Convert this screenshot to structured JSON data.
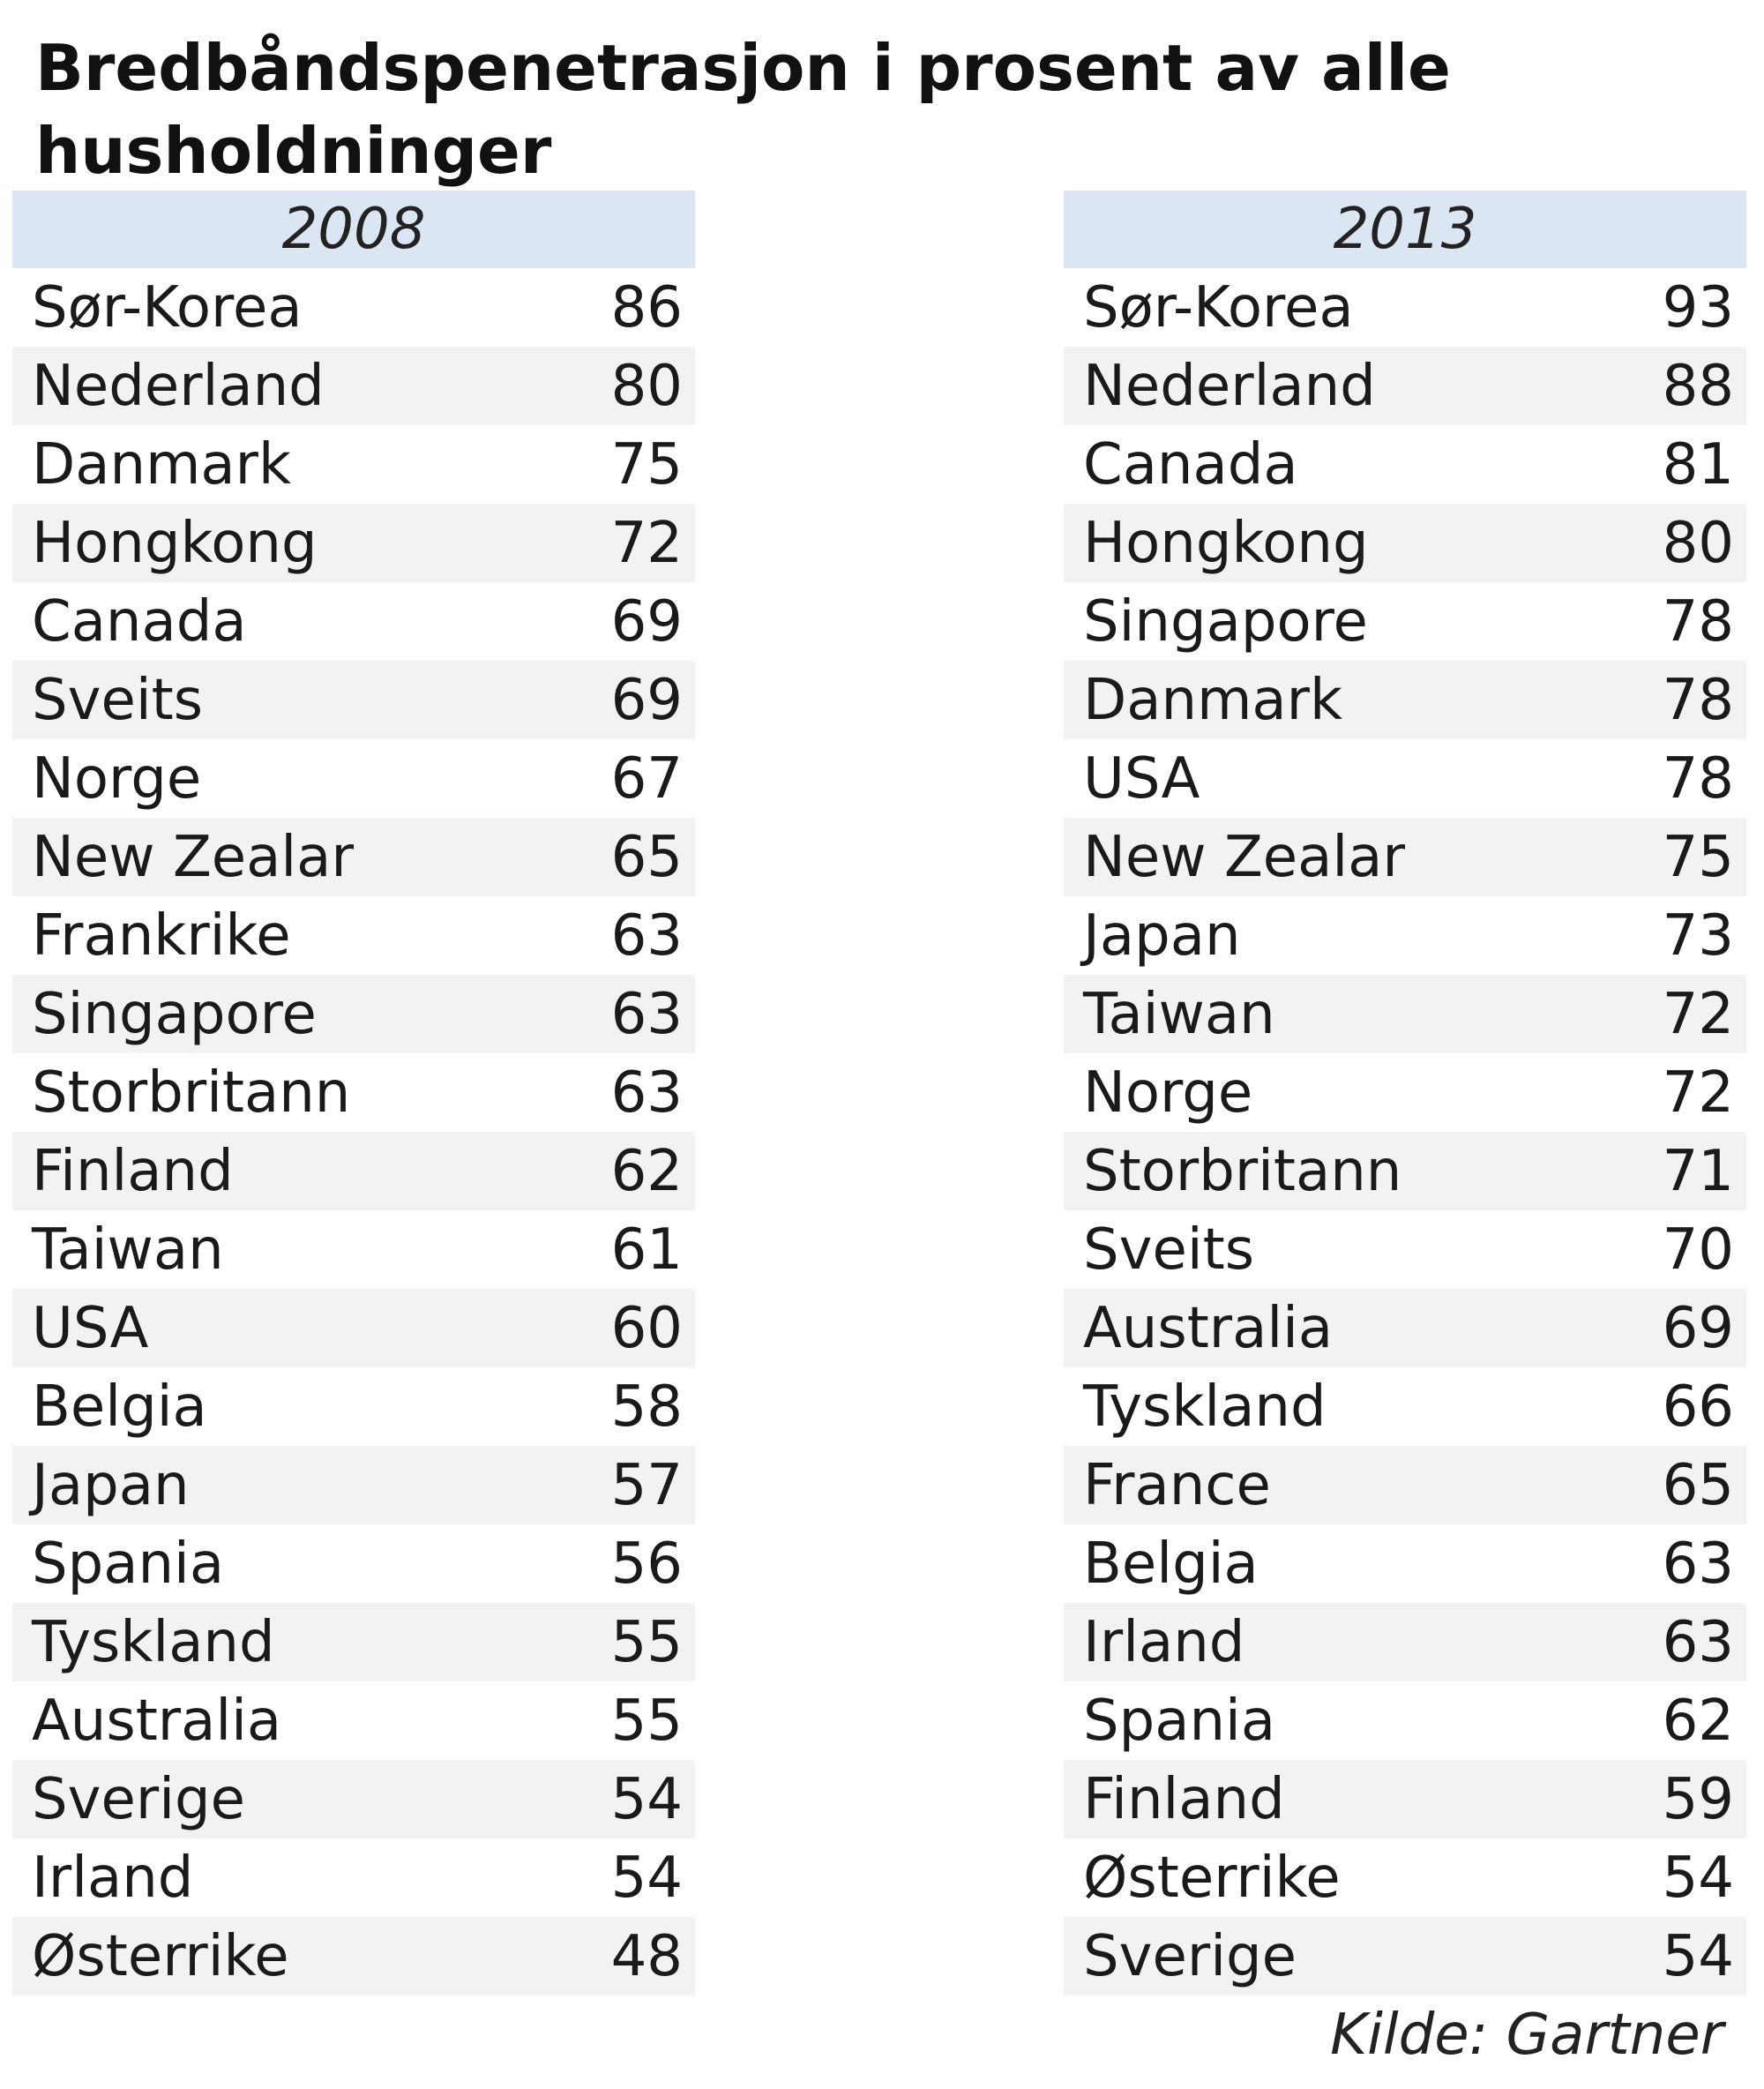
{
  "title": "Bredbåndspenetrasjon i prosent av alle husholdninger",
  "tables": [
    {
      "year": "2008",
      "rows": [
        {
          "country": "Sør-Korea",
          "value": 86
        },
        {
          "country": "Nederland",
          "value": 80
        },
        {
          "country": "Danmark",
          "value": 75
        },
        {
          "country": "Hongkong",
          "value": 72
        },
        {
          "country": "Canada",
          "value": 69
        },
        {
          "country": "Sveits",
          "value": 69
        },
        {
          "country": "Norge",
          "value": 67
        },
        {
          "country": "New Zealand",
          "value": 65
        },
        {
          "country": "Frankrike",
          "value": 63
        },
        {
          "country": "Singapore",
          "value": 63
        },
        {
          "country": "Storbritannia",
          "value": 63
        },
        {
          "country": "Finland",
          "value": 62
        },
        {
          "country": "Taiwan",
          "value": 61
        },
        {
          "country": "USA",
          "value": 60
        },
        {
          "country": "Belgia",
          "value": 58
        },
        {
          "country": "Japan",
          "value": 57
        },
        {
          "country": "Spania",
          "value": 56
        },
        {
          "country": "Tyskland",
          "value": 55
        },
        {
          "country": "Australia",
          "value": 55
        },
        {
          "country": "Sverige",
          "value": 54
        },
        {
          "country": "Irland",
          "value": 54
        },
        {
          "country": "Østerrike",
          "value": 48
        }
      ]
    },
    {
      "year": "2013",
      "rows": [
        {
          "country": "Sør-Korea",
          "value": 93
        },
        {
          "country": "Nederland",
          "value": 88
        },
        {
          "country": "Canada",
          "value": 81
        },
        {
          "country": "Hongkong",
          "value": 80
        },
        {
          "country": "Singapore",
          "value": 78
        },
        {
          "country": "Danmark",
          "value": 78
        },
        {
          "country": "USA",
          "value": 78
        },
        {
          "country": "New Zealand",
          "value": 75
        },
        {
          "country": "Japan",
          "value": 73
        },
        {
          "country": "Taiwan",
          "value": 72
        },
        {
          "country": "Norge",
          "value": 72
        },
        {
          "country": "Storbritannia",
          "value": 71
        },
        {
          "country": "Sveits",
          "value": 70
        },
        {
          "country": "Australia",
          "value": 69
        },
        {
          "country": "Tyskland",
          "value": 66
        },
        {
          "country": "France",
          "value": 65
        },
        {
          "country": "Belgia",
          "value": 63
        },
        {
          "country": "Irland",
          "value": 63
        },
        {
          "country": "Spania",
          "value": 62
        },
        {
          "country": "Finland",
          "value": 59
        },
        {
          "country": "Østerrike",
          "value": 54
        },
        {
          "country": "Sverige",
          "value": 54
        }
      ]
    }
  ],
  "source": "Kilde: Gartner"
}
